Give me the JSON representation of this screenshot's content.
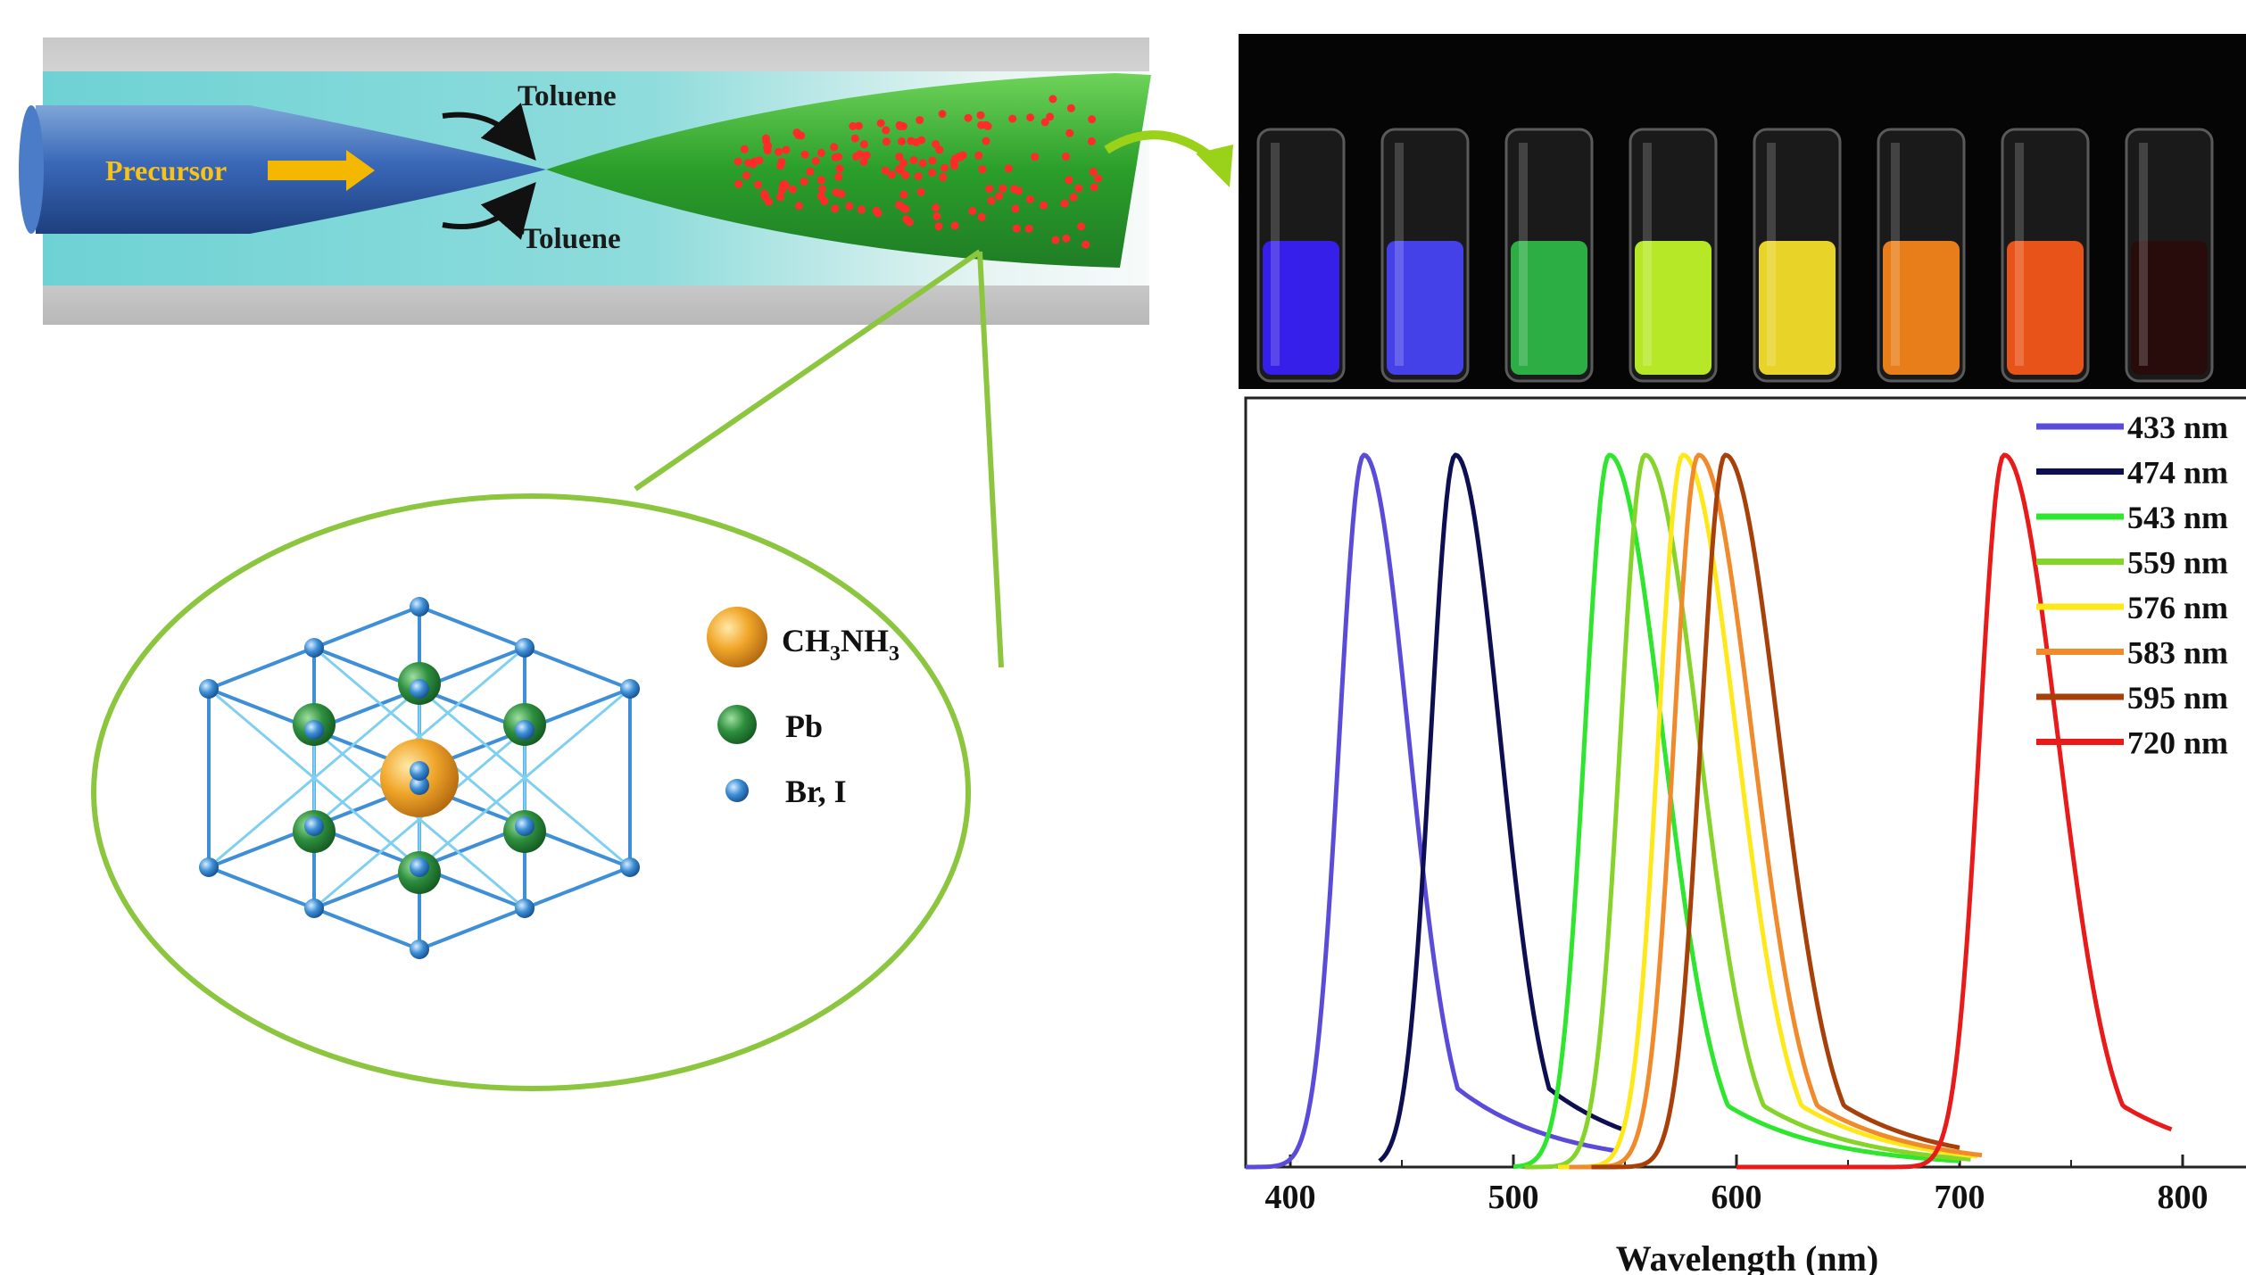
{
  "reactor": {
    "precursor_label": "Precursor",
    "toluene_top": "Toluene",
    "toluene_bottom": "Toluene",
    "arrow_color": "#f5b800",
    "plume_color": "#2fa52a",
    "dot_color": "#ff2a2a"
  },
  "structure": {
    "legend": [
      {
        "label": "CH",
        "sub1": "3",
        "mid": "NH",
        "sub2": "3",
        "color": "#f0a62a"
      },
      {
        "label": "Pb",
        "color": "#2e8f3e"
      },
      {
        "label": "Br, I",
        "color": "#3d8fd6"
      }
    ],
    "ellipse_color": "#8cc63f"
  },
  "vials": {
    "colors": [
      "#3a20ff",
      "#4a46ff",
      "#2fbf4a",
      "#c8ff2a",
      "#ffe82a",
      "#ff8a1a",
      "#ff5a1a",
      "#2a0a0a"
    ]
  },
  "chart_data": {
    "type": "line",
    "x_label": "Wavelength (nm)",
    "xlim": [
      380,
      830
    ],
    "ylim": [
      0,
      1.08
    ],
    "x_ticks": [
      400,
      500,
      600,
      700,
      800
    ],
    "legend_position": "top-right",
    "series": [
      {
        "name": "433 nm",
        "peak": 433,
        "color": "#5a4bd8",
        "range": [
          380,
          545
        ]
      },
      {
        "name": "474 nm",
        "peak": 474,
        "color": "#0e0e52",
        "range": [
          440,
          550
        ]
      },
      {
        "name": "543 nm",
        "peak": 543,
        "color": "#2ee62e",
        "range": [
          500,
          700
        ]
      },
      {
        "name": "559 nm",
        "peak": 559,
        "color": "#86d42a",
        "range": [
          505,
          705
        ]
      },
      {
        "name": "576 nm",
        "peak": 576,
        "color": "#ffe81a",
        "range": [
          520,
          708
        ]
      },
      {
        "name": "583 nm",
        "peak": 583,
        "color": "#f08a2a",
        "range": [
          525,
          710
        ]
      },
      {
        "name": "595 nm",
        "peak": 595,
        "color": "#a8400a",
        "range": [
          535,
          700
        ]
      },
      {
        "name": "720 nm",
        "peak": 720,
        "color": "#e81a1a",
        "range": [
          600,
          795
        ]
      }
    ]
  }
}
